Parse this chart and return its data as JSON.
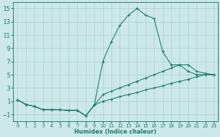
{
  "xlabel": "Humidex (Indice chaleur)",
  "background_color": "#cce8e8",
  "grid_color": "#aacece",
  "line_color": "#1a7a6e",
  "xlim": [
    -0.5,
    23.5
  ],
  "ylim": [
    -2,
    16
  ],
  "yticks": [
    -1,
    1,
    3,
    5,
    7,
    9,
    11,
    13,
    15
  ],
  "xticks": [
    0,
    1,
    2,
    3,
    4,
    5,
    6,
    7,
    8,
    9,
    10,
    11,
    12,
    13,
    14,
    15,
    16,
    17,
    18,
    19,
    20,
    21,
    22,
    23
  ],
  "series": [
    {
      "x": [
        0,
        1,
        2,
        3,
        4,
        5,
        6,
        7,
        8,
        9,
        10,
        11,
        12,
        13,
        14,
        15,
        16,
        17,
        18,
        19,
        20,
        21,
        22,
        23
      ],
      "y": [
        1.2,
        0.5,
        0.2,
        -0.3,
        -0.3,
        -0.3,
        -0.4,
        -0.4,
        -1.2,
        0.4,
        7.0,
        10.0,
        12.5,
        14.0,
        15.0,
        14.0,
        13.5,
        8.5,
        6.5,
        6.5,
        5.5,
        5.0,
        5.0,
        5.0
      ]
    },
    {
      "x": [
        0,
        1,
        2,
        3,
        4,
        5,
        6,
        7,
        8,
        9,
        10,
        11,
        12,
        13,
        14,
        15,
        16,
        17,
        18,
        19,
        20,
        21,
        22,
        23
      ],
      "y": [
        1.2,
        0.5,
        0.2,
        -0.3,
        -0.3,
        -0.3,
        -0.4,
        -0.4,
        -1.2,
        0.4,
        2.0,
        2.5,
        3.0,
        3.5,
        4.0,
        4.5,
        5.0,
        5.5,
        6.0,
        6.5,
        6.5,
        5.5,
        5.2,
        5.0
      ]
    },
    {
      "x": [
        0,
        1,
        2,
        3,
        4,
        5,
        6,
        7,
        8,
        9,
        10,
        11,
        12,
        13,
        14,
        15,
        16,
        17,
        18,
        19,
        20,
        21,
        22,
        23
      ],
      "y": [
        1.2,
        0.5,
        0.2,
        -0.3,
        -0.3,
        -0.3,
        -0.4,
        -0.4,
        -1.2,
        0.4,
        1.0,
        1.3,
        1.7,
        2.0,
        2.3,
        2.7,
        3.0,
        3.3,
        3.7,
        4.0,
        4.3,
        4.7,
        5.0,
        5.0
      ]
    }
  ]
}
